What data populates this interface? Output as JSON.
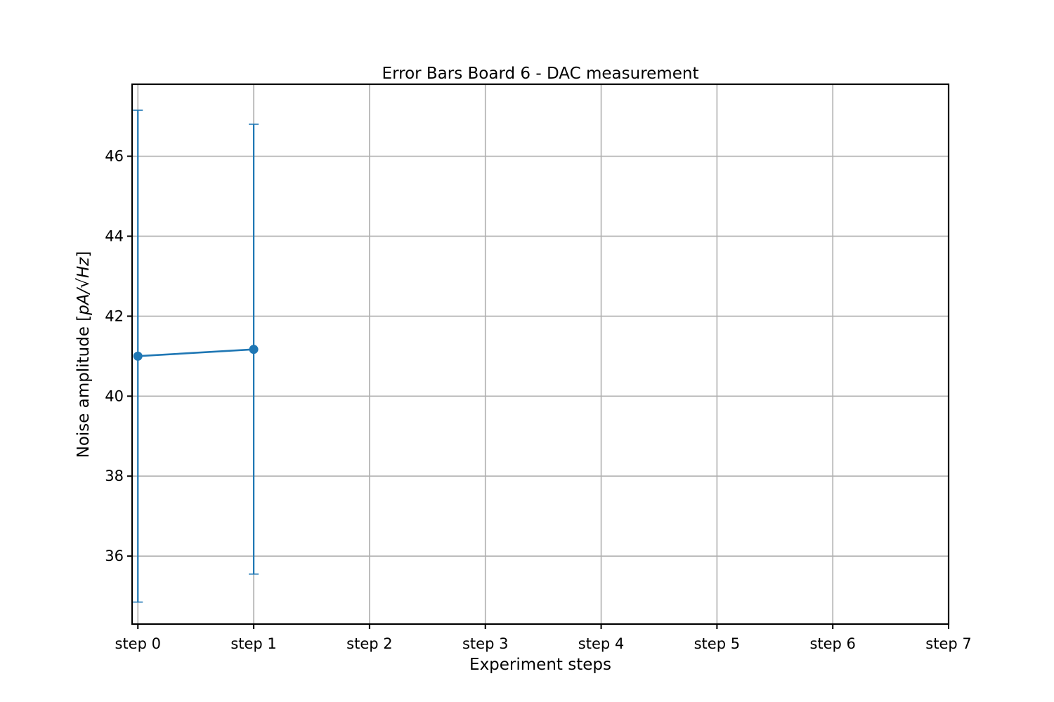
{
  "chart_data": {
    "type": "line",
    "title": "Error Bars Board 6 - DAC measurement",
    "xlabel": "Experiment steps",
    "ylabel_text": "Noise amplitude [",
    "ylabel_math": "pA/√Hz",
    "ylabel_close": "]",
    "categories": [
      "step 0",
      "step 1",
      "step 2",
      "step 3",
      "step 4",
      "step 5",
      "step 6",
      "step 7"
    ],
    "x_range": [
      -0.05,
      7
    ],
    "ylim": [
      34.3,
      47.8
    ],
    "yticks": [
      36,
      38,
      40,
      42,
      44,
      46
    ],
    "grid": true,
    "series": [
      {
        "color": "#1f77b4",
        "points": [
          {
            "x": 0,
            "y": 41.0,
            "yerr_low": 34.85,
            "yerr_high": 47.15
          },
          {
            "x": 1,
            "y": 41.17,
            "yerr_low": 35.55,
            "yerr_high": 46.8
          }
        ]
      }
    ]
  }
}
